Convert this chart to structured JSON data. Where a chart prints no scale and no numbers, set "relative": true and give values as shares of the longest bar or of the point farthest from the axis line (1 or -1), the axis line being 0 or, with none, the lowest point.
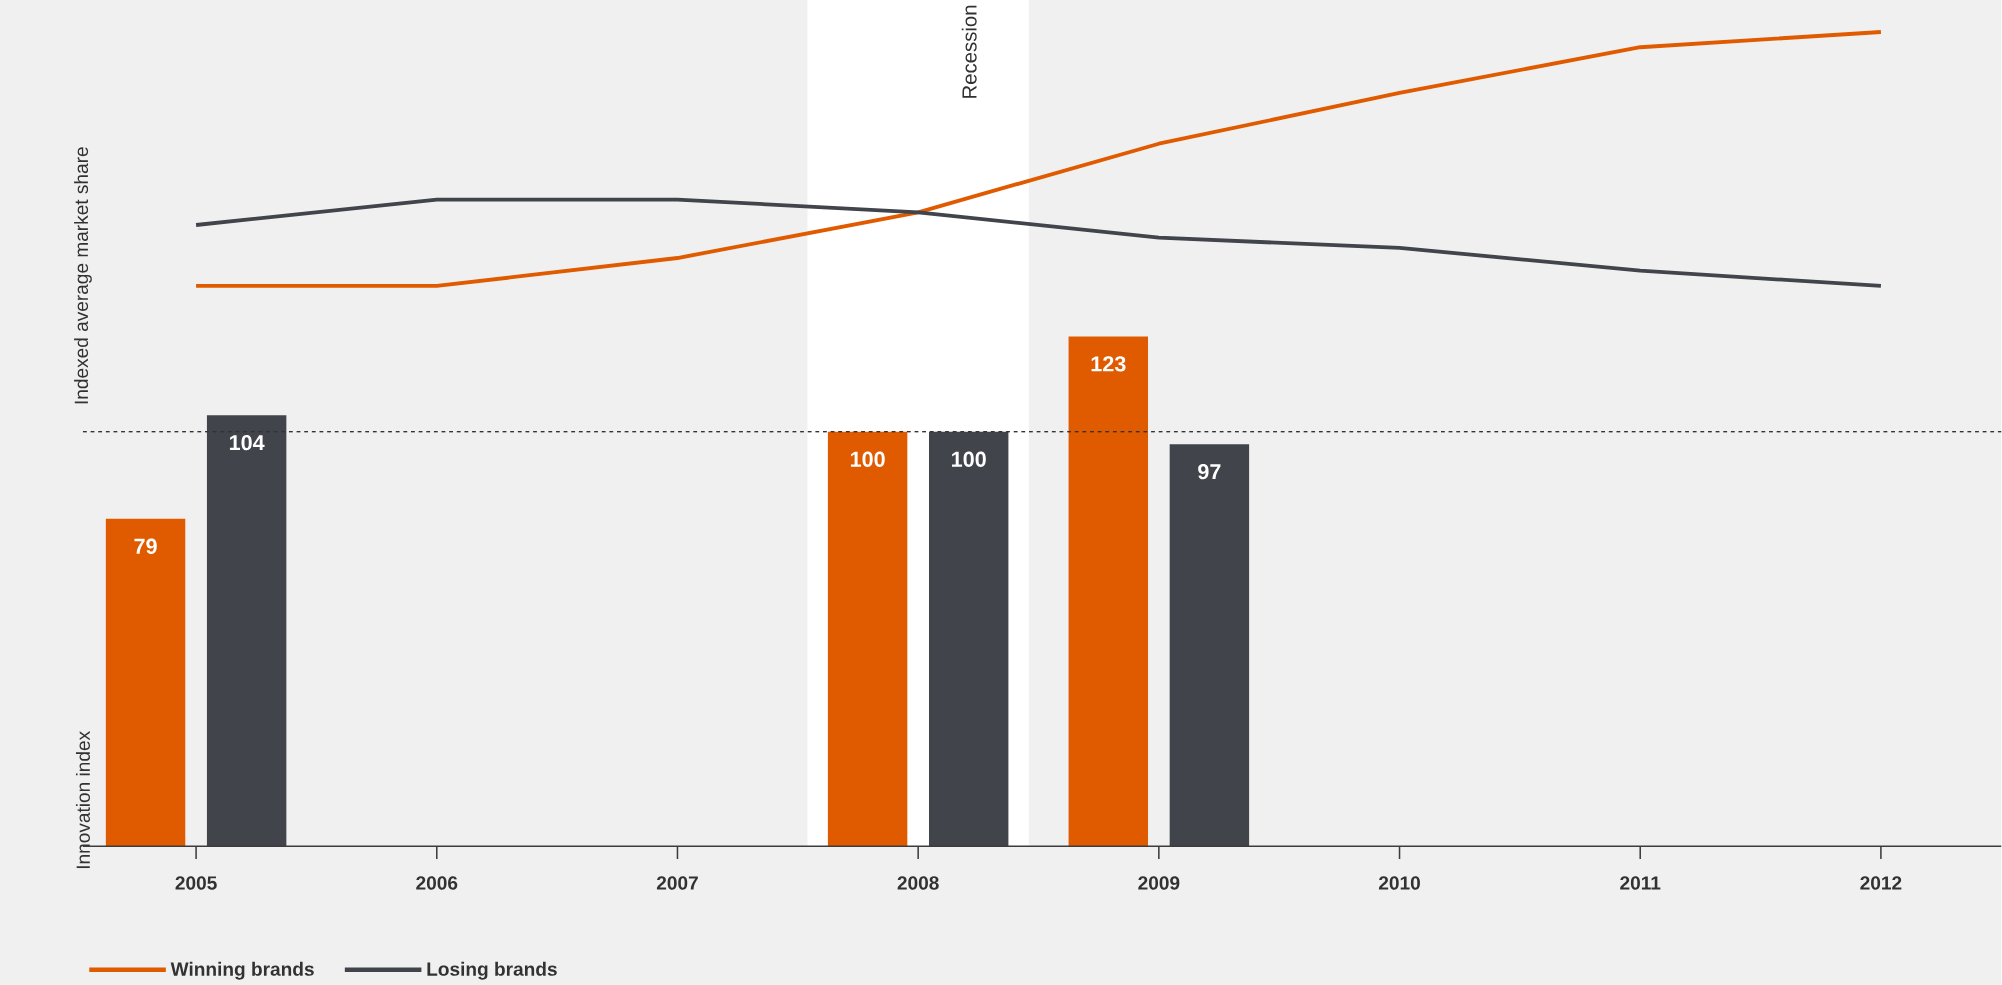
{
  "chart_data": [
    {
      "type": "line",
      "ylabel": "Indexed average market share",
      "categories": [
        "2005",
        "2006",
        "2007",
        "2008",
        "2009",
        "2010",
        "2011",
        "2012"
      ],
      "relative": true,
      "legend": "bottom",
      "tick_labels": false,
      "line_style": "solid",
      "series": [
        {
          "name": "Winning brands",
          "color": "#e05a00",
          "values": [
            0,
            0,
            0.11,
            0.29,
            0.56,
            0.76,
            0.94,
            1
          ]
        },
        {
          "name": "Losing brands",
          "color": "#41444a",
          "values": [
            0.24,
            0.34,
            0.34,
            0.29,
            0.19,
            0.15,
            0.06,
            0
          ]
        }
      ]
    },
    {
      "type": "bar",
      "ylabel": "Innovation index",
      "categories": [
        "2005",
        "2006",
        "2007",
        "2008",
        "2009",
        "2010",
        "2011",
        "2012"
      ],
      "data_labels": true,
      "tick_labels": "x",
      "series": [
        {
          "color": "#e05a00",
          "values": [
            79,
            null,
            null,
            100,
            123,
            null,
            null,
            null
          ]
        },
        {
          "color": "#41444a",
          "values": [
            104,
            null,
            null,
            100,
            97,
            null,
            null,
            null
          ]
        }
      ],
      "ref_lines": [
        {
          "axis": "y",
          "value": 100,
          "line_style": "dashed",
          "color": "#333333"
        }
      ],
      "bands": [
        {
          "axis": "x",
          "from": "2008",
          "to": "2008",
          "label": "Recession",
          "color": "#ffffff"
        }
      ]
    }
  ]
}
